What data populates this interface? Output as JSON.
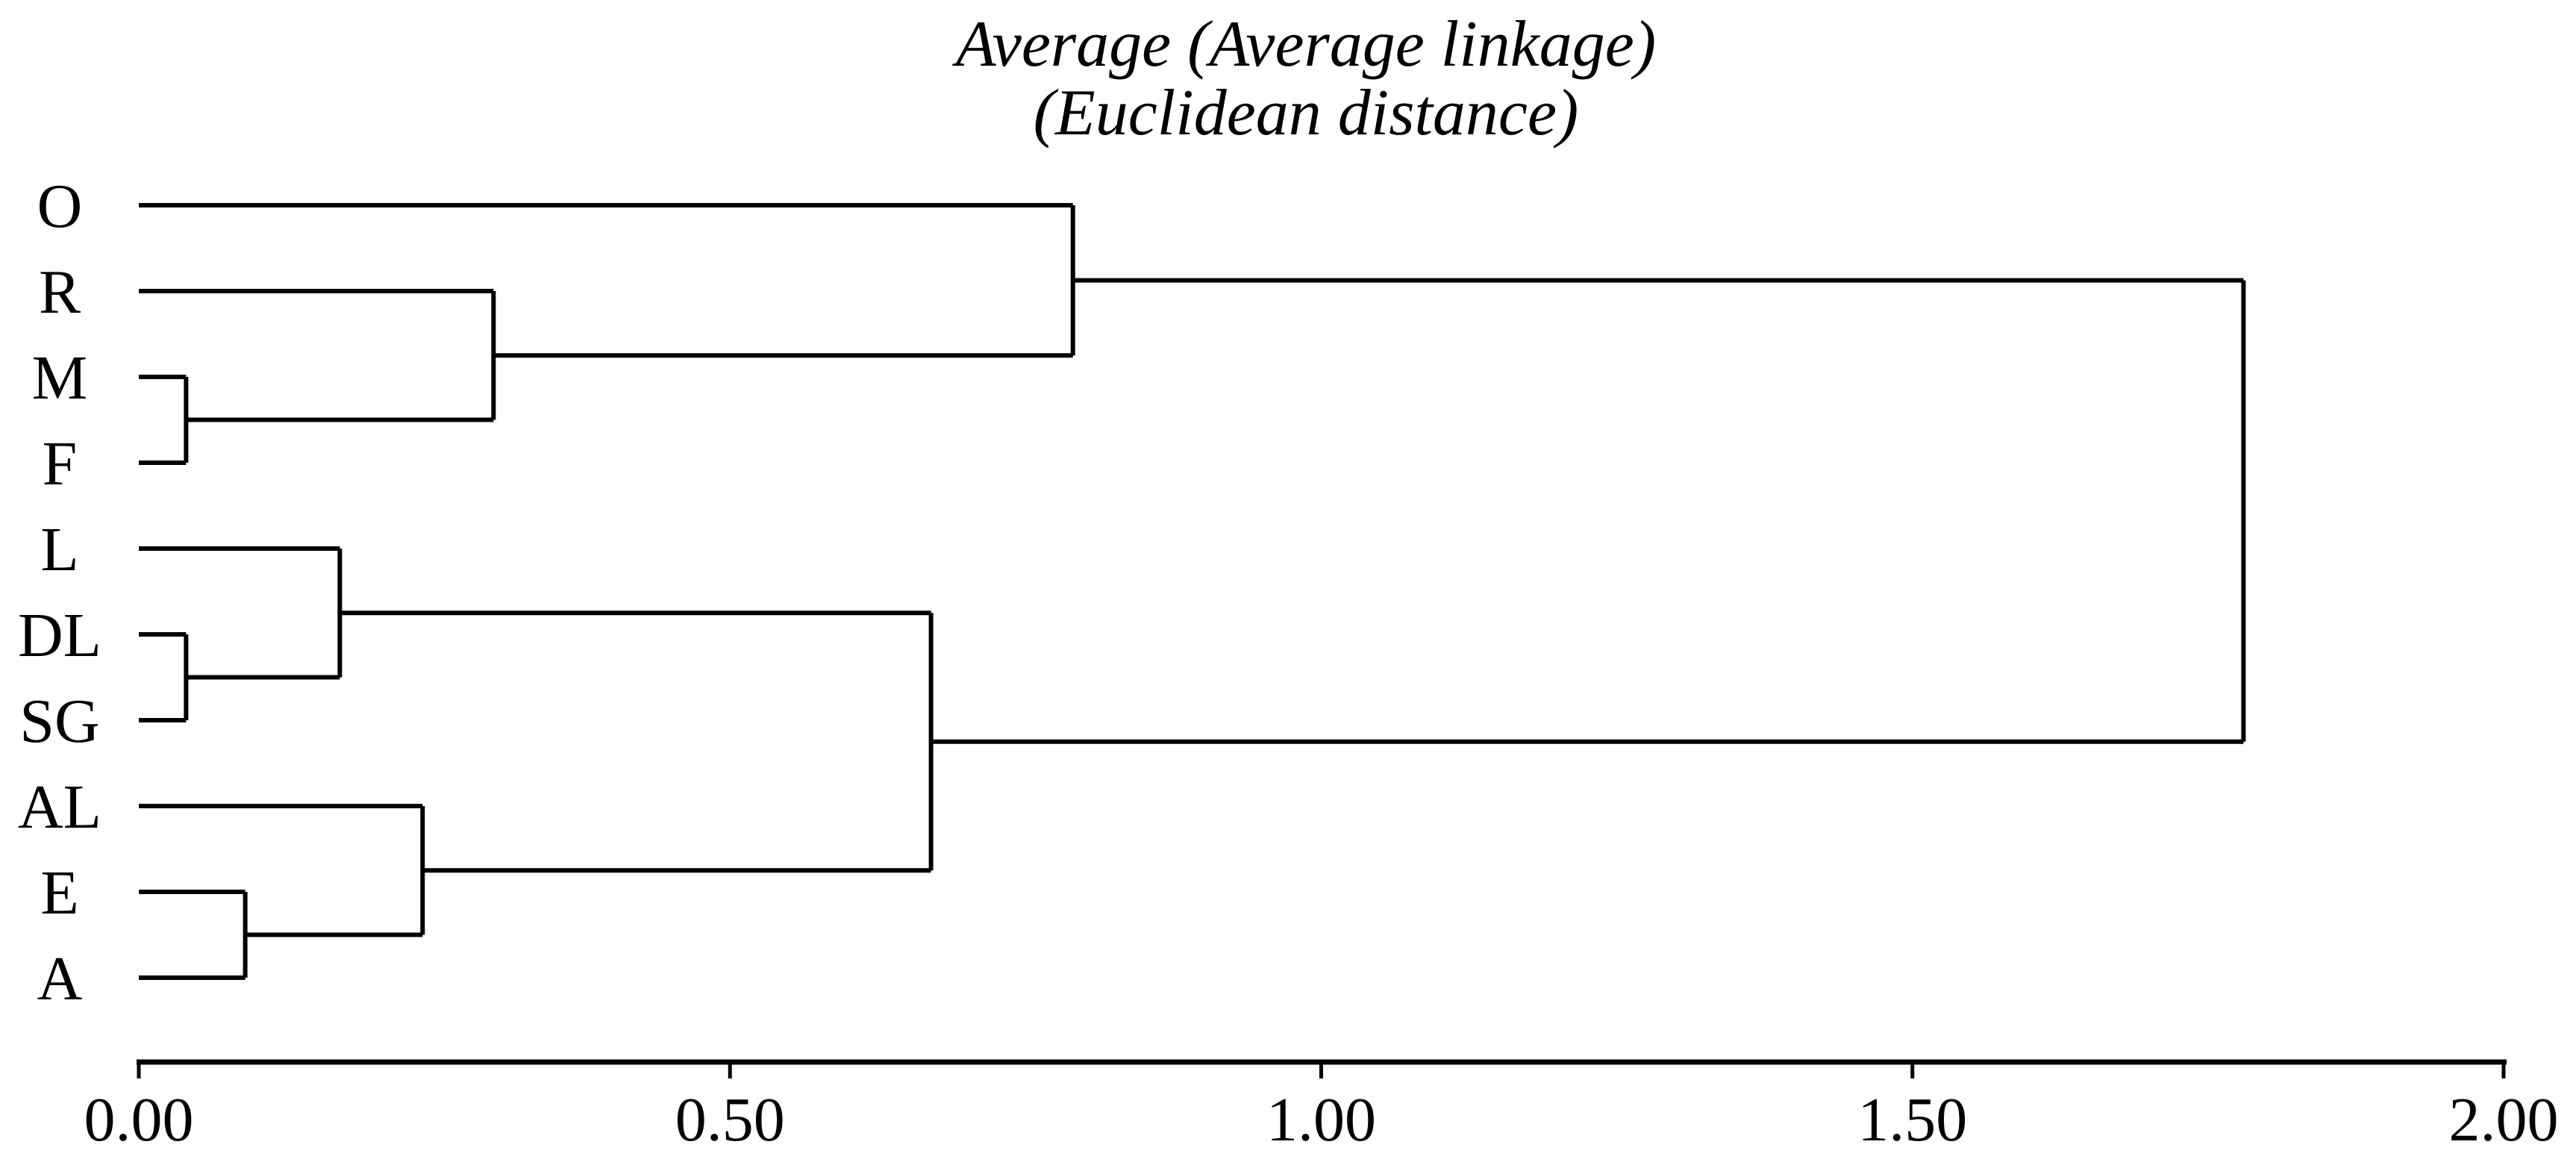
{
  "chart_data": {
    "type": "dendrogram",
    "orientation": "horizontal",
    "title_line1": "Average (Average linkage)",
    "title_line2": "(Euclidean distance)",
    "linkage_method": "Average linkage",
    "distance_metric": "Euclidean distance",
    "leaves": [
      "O",
      "R",
      "M",
      "F",
      "L",
      "DL",
      "SG",
      "AL",
      "E",
      "A"
    ],
    "x_axis": {
      "range": [
        0,
        2
      ],
      "tick_labels": [
        "0.00",
        "0.50",
        "1.00",
        "1.50",
        "2.00"
      ],
      "tick_values": [
        0,
        0.5,
        1,
        1.5,
        2
      ],
      "grid": false
    },
    "merges": [
      {
        "cluster_1": "M",
        "cluster_2": "F",
        "distance": 0.04
      },
      {
        "cluster_1": "DL",
        "cluster_2": "SG",
        "distance": 0.04
      },
      {
        "cluster_1": "E",
        "cluster_2": "A",
        "distance": 0.09
      },
      {
        "cluster_1": "L",
        "cluster_2": "DL+SG",
        "distance": 0.17
      },
      {
        "cluster_1": "AL",
        "cluster_2": "E+A",
        "distance": 0.24
      },
      {
        "cluster_1": "R",
        "cluster_2": "M+F",
        "distance": 0.3
      },
      {
        "cluster_1": "L+DL+SG",
        "cluster_2": "AL+E+A",
        "distance": 0.67
      },
      {
        "cluster_1": "O",
        "cluster_2": "R+M+F",
        "distance": 0.79
      },
      {
        "cluster_1": "O+R+M+F",
        "cluster_2": "L+DL+SG+AL+E+A",
        "distance": 1.78
      }
    ],
    "tree": {
      "height": 1.78,
      "children": [
        {
          "height": 0.79,
          "children": [
            {
              "leaf": "O"
            },
            {
              "height": 0.3,
              "children": [
                {
                  "leaf": "R"
                },
                {
                  "height": 0.04,
                  "children": [
                    {
                      "leaf": "M"
                    },
                    {
                      "leaf": "F"
                    }
                  ]
                }
              ]
            }
          ]
        },
        {
          "height": 0.67,
          "children": [
            {
              "height": 0.17,
              "children": [
                {
                  "leaf": "L"
                },
                {
                  "height": 0.04,
                  "children": [
                    {
                      "leaf": "DL"
                    },
                    {
                      "leaf": "SG"
                    }
                  ]
                }
              ]
            },
            {
              "height": 0.24,
              "children": [
                {
                  "leaf": "AL"
                },
                {
                  "height": 0.09,
                  "children": [
                    {
                      "leaf": "E"
                    },
                    {
                      "leaf": "A"
                    }
                  ]
                }
              ]
            }
          ]
        }
      ]
    },
    "line_color": "#000000",
    "background_color": "#ffffff"
  }
}
